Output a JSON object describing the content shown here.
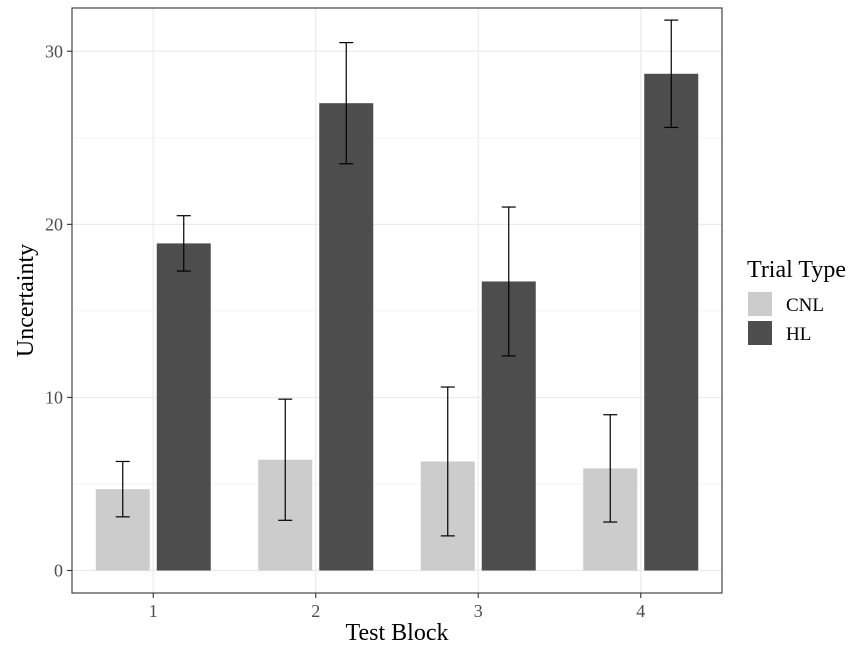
{
  "chart_data": {
    "type": "bar",
    "xlabel": "Test Block",
    "ylabel": "Uncertainty",
    "categories": [
      "1",
      "2",
      "3",
      "4"
    ],
    "ylim": [
      -1.3,
      32.5
    ],
    "yticks": [
      0,
      10,
      20,
      30
    ],
    "grid": true,
    "legend_position": "right",
    "legend_title": "Trial Type",
    "series": [
      {
        "name": "CNL",
        "color": "#cccccc",
        "values": [
          4.7,
          6.4,
          6.3,
          5.9
        ],
        "error_low": [
          3.1,
          2.9,
          2.0,
          2.8
        ],
        "error_high": [
          6.3,
          9.9,
          10.6,
          9.0
        ]
      },
      {
        "name": "HL",
        "color": "#4d4d4d",
        "values": [
          18.9,
          27.0,
          16.7,
          28.7
        ],
        "error_low": [
          17.3,
          23.5,
          12.4,
          25.6
        ],
        "error_high": [
          20.5,
          30.5,
          21.0,
          31.8
        ]
      }
    ]
  }
}
